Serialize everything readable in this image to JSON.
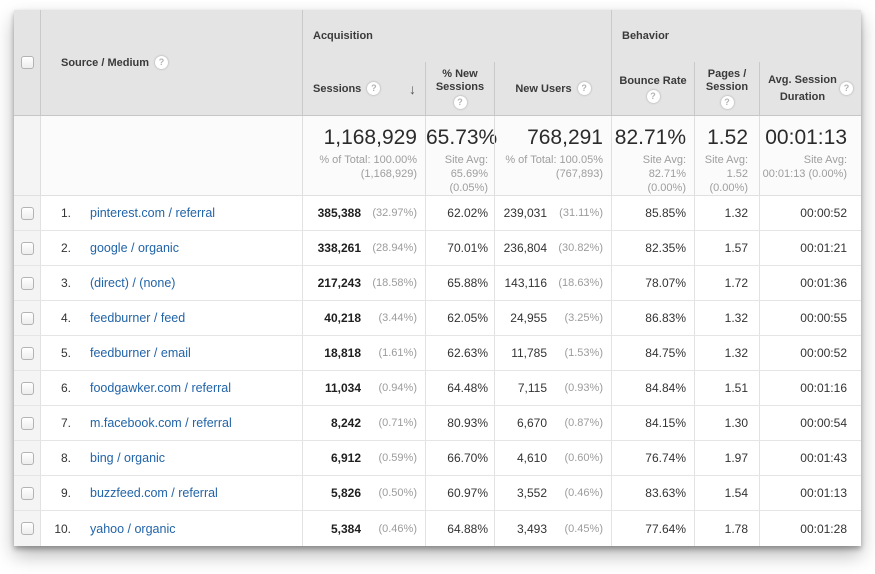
{
  "colors": {
    "header_bg": "#e4e4e4",
    "link_blue": "#2264a8",
    "muted_gray": "#9c9c9c",
    "border_gray": "#c9c9c9"
  },
  "icons": {
    "help": "?",
    "sort_descending": "↓"
  },
  "header": {
    "groups": {
      "acquisition": "Acquisition",
      "behavior": "Behavior"
    },
    "columns": {
      "source_medium": "Source / Medium",
      "sessions": "Sessions",
      "pct_new_sessions": "% New Sessions",
      "new_users": "New Users",
      "bounce_rate": "Bounce Rate",
      "pages_per_session": "Pages / Session",
      "avg_session_duration": "Avg. Session Duration"
    }
  },
  "summary": {
    "sessions": {
      "value": "1,168,929",
      "note": "% of Total: 100.00% (1,168,929)"
    },
    "pct_new_sessions": {
      "value": "65.73%",
      "note": "Site Avg: 65.69% (0.05%)"
    },
    "new_users": {
      "value": "768,291",
      "note": "% of Total: 100.05% (767,893)"
    },
    "bounce_rate": {
      "value": "82.71%",
      "note": "Site Avg: 82.71% (0.00%)"
    },
    "pages_per_session": {
      "value": "1.52",
      "note": "Site Avg: 1.52 (0.00%)"
    },
    "avg_session_duration": {
      "value": "00:01:13",
      "note": "Site Avg: 00:01:13 (0.00%)"
    }
  },
  "rows": [
    {
      "rank": "1.",
      "source": "pinterest.com / referral",
      "sessions": "385,388",
      "sessions_pct": "(32.97%)",
      "pct_new_sessions": "62.02%",
      "new_users": "239,031",
      "new_users_pct": "(31.11%)",
      "bounce_rate": "85.85%",
      "pages_per_session": "1.32",
      "avg_session_duration": "00:00:52"
    },
    {
      "rank": "2.",
      "source": "google / organic",
      "sessions": "338,261",
      "sessions_pct": "(28.94%)",
      "pct_new_sessions": "70.01%",
      "new_users": "236,804",
      "new_users_pct": "(30.82%)",
      "bounce_rate": "82.35%",
      "pages_per_session": "1.57",
      "avg_session_duration": "00:01:21"
    },
    {
      "rank": "3.",
      "source": "(direct) / (none)",
      "sessions": "217,243",
      "sessions_pct": "(18.58%)",
      "pct_new_sessions": "65.88%",
      "new_users": "143,116",
      "new_users_pct": "(18.63%)",
      "bounce_rate": "78.07%",
      "pages_per_session": "1.72",
      "avg_session_duration": "00:01:36"
    },
    {
      "rank": "4.",
      "source": "feedburner / feed",
      "sessions": "40,218",
      "sessions_pct": "(3.44%)",
      "pct_new_sessions": "62.05%",
      "new_users": "24,955",
      "new_users_pct": "(3.25%)",
      "bounce_rate": "86.83%",
      "pages_per_session": "1.32",
      "avg_session_duration": "00:00:55"
    },
    {
      "rank": "5.",
      "source": "feedburner / email",
      "sessions": "18,818",
      "sessions_pct": "(1.61%)",
      "pct_new_sessions": "62.63%",
      "new_users": "11,785",
      "new_users_pct": "(1.53%)",
      "bounce_rate": "84.75%",
      "pages_per_session": "1.32",
      "avg_session_duration": "00:00:52"
    },
    {
      "rank": "6.",
      "source": "foodgawker.com / referral",
      "sessions": "11,034",
      "sessions_pct": "(0.94%)",
      "pct_new_sessions": "64.48%",
      "new_users": "7,115",
      "new_users_pct": "(0.93%)",
      "bounce_rate": "84.84%",
      "pages_per_session": "1.51",
      "avg_session_duration": "00:01:16"
    },
    {
      "rank": "7.",
      "source": "m.facebook.com / referral",
      "sessions": "8,242",
      "sessions_pct": "(0.71%)",
      "pct_new_sessions": "80.93%",
      "new_users": "6,670",
      "new_users_pct": "(0.87%)",
      "bounce_rate": "84.15%",
      "pages_per_session": "1.30",
      "avg_session_duration": "00:00:54"
    },
    {
      "rank": "8.",
      "source": "bing / organic",
      "sessions": "6,912",
      "sessions_pct": "(0.59%)",
      "pct_new_sessions": "66.70%",
      "new_users": "4,610",
      "new_users_pct": "(0.60%)",
      "bounce_rate": "76.74%",
      "pages_per_session": "1.97",
      "avg_session_duration": "00:01:43"
    },
    {
      "rank": "9.",
      "source": "buzzfeed.com / referral",
      "sessions": "5,826",
      "sessions_pct": "(0.50%)",
      "pct_new_sessions": "60.97%",
      "new_users": "3,552",
      "new_users_pct": "(0.46%)",
      "bounce_rate": "83.63%",
      "pages_per_session": "1.54",
      "avg_session_duration": "00:01:13"
    },
    {
      "rank": "10.",
      "source": "yahoo / organic",
      "sessions": "5,384",
      "sessions_pct": "(0.46%)",
      "pct_new_sessions": "64.88%",
      "new_users": "3,493",
      "new_users_pct": "(0.45%)",
      "bounce_rate": "77.64%",
      "pages_per_session": "1.78",
      "avg_session_duration": "00:01:28"
    }
  ]
}
